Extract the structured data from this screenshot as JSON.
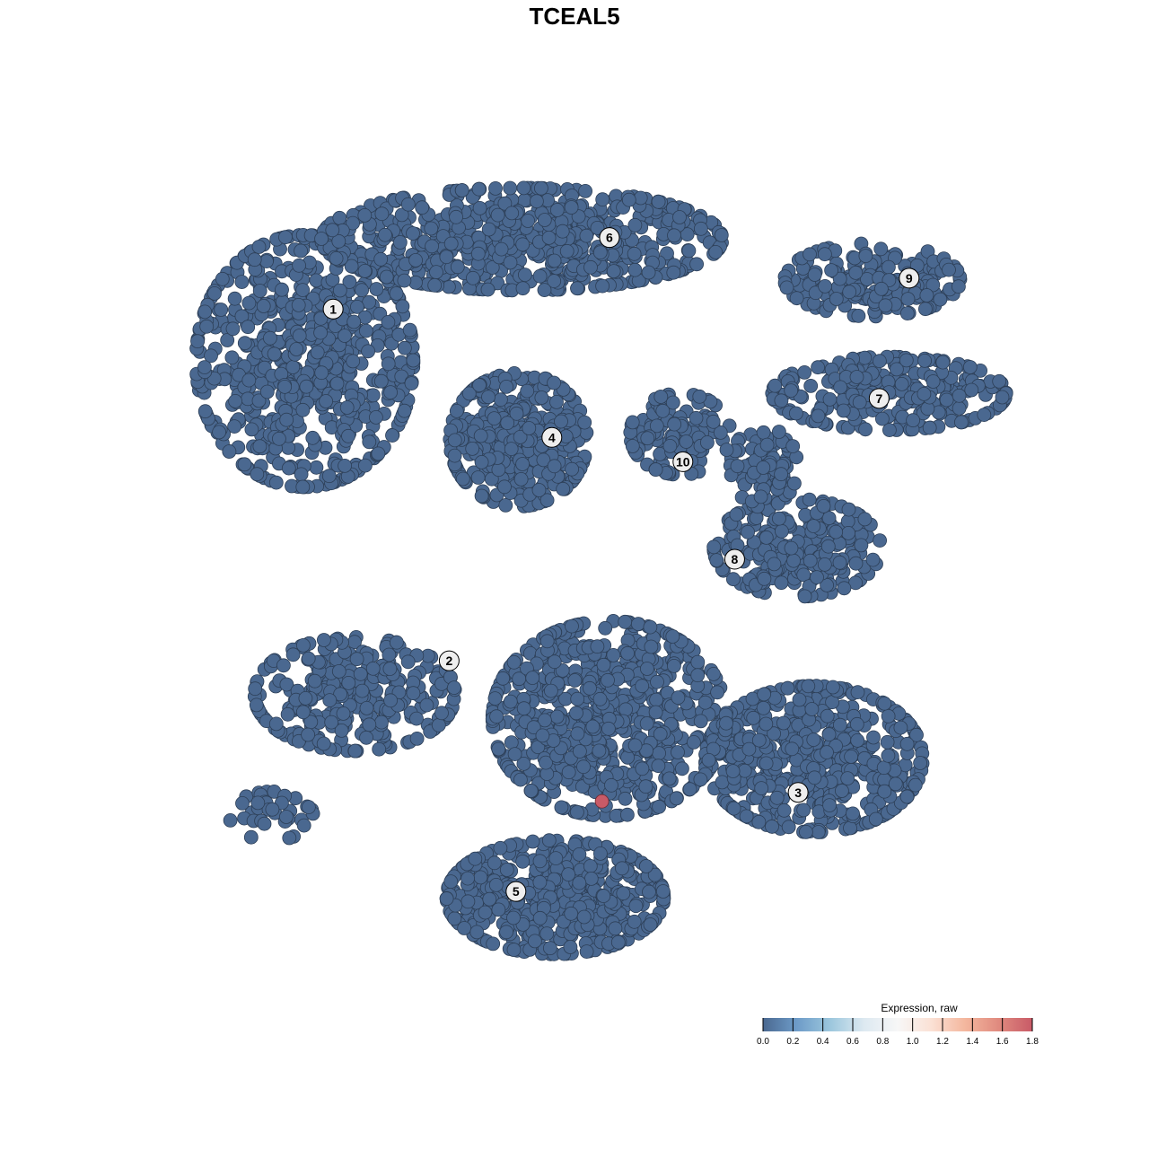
{
  "chart_data": {
    "type": "scatter",
    "title": "TCEAL5",
    "xlabel": "",
    "ylabel": "",
    "grid": false,
    "axes_visible": false,
    "xlim": [
      0,
      100
    ],
    "ylim": [
      0,
      100
    ],
    "point_color_low": "#4a6890",
    "point_color_high": "#c85a67",
    "clusters": [
      {
        "label": "1",
        "label_pos": [
          18.4,
          82.4
        ],
        "blobs": [
          {
            "center": [
              15,
              76
            ],
            "spread": [
              13,
              15.5
            ],
            "n": 650
          }
        ]
      },
      {
        "label": "2",
        "label_pos": [
          32.3,
          39.1
        ],
        "blobs": [
          {
            "center": [
              21,
              35
            ],
            "spread": [
              12,
              7
            ],
            "n": 300
          },
          {
            "center": [
              11,
              20
            ],
            "spread": [
              5,
              3
            ],
            "n": 35
          }
        ]
      },
      {
        "label": "3",
        "label_pos": [
          74.1,
          22.9
        ],
        "blobs": [
          {
            "center": [
              76,
              27
            ],
            "spread": [
              13,
              9
            ],
            "n": 500
          }
        ]
      },
      {
        "label": "4",
        "label_pos": [
          44.6,
          66.6
        ],
        "blobs": [
          {
            "center": [
              40.6,
              66.3
            ],
            "spread": [
              8.2,
              8.2
            ],
            "n": 380
          }
        ]
      },
      {
        "label": "5",
        "label_pos": [
          40.3,
          10.7
        ],
        "blobs": [
          {
            "center": [
              45,
              10
            ],
            "spread": [
              13,
              7
            ],
            "n": 520
          },
          {
            "center": [
              51.5,
              32
            ],
            "spread": [
              14,
              12
            ],
            "n": 700
          }
        ]
      },
      {
        "label": "6",
        "label_pos": [
          51.5,
          91.2
        ],
        "blobs": [
          {
            "center": [
              41,
              91
            ],
            "spread": [
              24,
              6.3
            ],
            "n": 650
          }
        ]
      },
      {
        "label": "7",
        "label_pos": [
          83.8,
          71.4
        ],
        "blobs": [
          {
            "center": [
              85,
              72
            ],
            "spread": [
              14,
              4.5
            ],
            "n": 260
          }
        ]
      },
      {
        "label": "8",
        "label_pos": [
          66.5,
          51.6
        ],
        "blobs": [
          {
            "center": [
              74,
              53
            ],
            "spread": [
              10,
              6
            ],
            "n": 230
          },
          {
            "center": [
              70,
              63
            ],
            "spread": [
              4,
              5
            ],
            "n": 80
          }
        ]
      },
      {
        "label": "9",
        "label_pos": [
          87.4,
          86.2
        ],
        "blobs": [
          {
            "center": [
              83,
              86
            ],
            "spread": [
              10.5,
              4.5
            ],
            "n": 180
          }
        ]
      },
      {
        "label": "10",
        "label_pos": [
          60.3,
          63.6
        ],
        "blobs": [
          {
            "center": [
              60,
              67
            ],
            "spread": [
              6,
              5
            ],
            "n": 130
          }
        ]
      }
    ],
    "highlighted_points": [
      {
        "x": 50.6,
        "y": 21.8,
        "value": 1.8
      }
    ],
    "legend": {
      "title": "Expression, raw",
      "position": "bottom-right",
      "range": [
        0.0,
        1.8
      ],
      "ticks": [
        "0.0",
        "0.2",
        "0.4",
        "0.6",
        "0.8",
        "1.0",
        "1.2",
        "1.4",
        "1.6",
        "1.8"
      ],
      "colors": [
        "#4a6890",
        "#6d9bc8",
        "#9cc7dd",
        "#dde9f1",
        "#f7f7f7",
        "#fbe1d5",
        "#f4b79e",
        "#e08a7f",
        "#c85a67"
      ]
    }
  }
}
